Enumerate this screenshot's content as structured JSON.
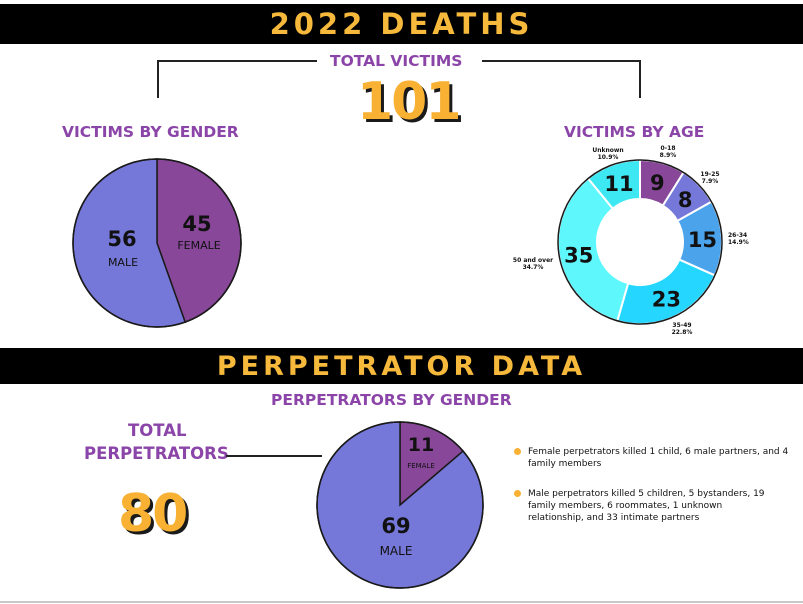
{
  "header": {
    "title": "2022 DEATHS"
  },
  "total_victims": {
    "label": "TOTAL VICTIMS",
    "value": "101"
  },
  "victims_by_gender": {
    "title": "VICTIMS BY GENDER",
    "slices": [
      {
        "name": "FEMALE",
        "value": 45,
        "color": "#884799"
      },
      {
        "name": "MALE",
        "value": 56,
        "color": "#7578d8"
      }
    ]
  },
  "victims_by_age": {
    "title": "VICTIMS BY AGE",
    "segments": [
      {
        "name": "0-18",
        "value": 9,
        "percent": "8.9%",
        "color": "#884799"
      },
      {
        "name": "19-25",
        "value": 8,
        "percent": "7.9%",
        "color": "#7578d8"
      },
      {
        "name": "26-34",
        "value": 15,
        "percent": "14.9%",
        "color": "#4ba3ec"
      },
      {
        "name": "35-49",
        "value": 23,
        "percent": "22.8%",
        "color": "#25d7ff"
      },
      {
        "name": "50 and over",
        "value": 35,
        "percent": "34.7%",
        "color": "#5ef7fb"
      },
      {
        "name": "Unknown",
        "value": 11,
        "percent": "10.9%",
        "color": "#3ee8f2"
      }
    ]
  },
  "perpetrator_section": {
    "title": "PERPETRATOR DATA"
  },
  "total_perpetrators": {
    "label_line1": "TOTAL",
    "label_line2": "PERPETRATORS",
    "value": "80"
  },
  "perpetrators_by_gender": {
    "title": "PERPETRATORS BY GENDER",
    "slices": [
      {
        "name": "FEMALE",
        "value": 11,
        "color": "#884799"
      },
      {
        "name": "MALE",
        "value": 69,
        "color": "#7578d8"
      }
    ]
  },
  "notes": [
    "Female perpetrators killed 1 child, 6 male partners, and 4 family members",
    "Male perpetrators killed 5 children, 5 bystanders, 19 family members, 6 roommates, 1 unknown relationship, and 33 intimate partners"
  ],
  "chart_data": [
    {
      "type": "pie",
      "title": "VICTIMS BY GENDER",
      "categories": [
        "MALE",
        "FEMALE"
      ],
      "values": [
        56,
        45
      ]
    },
    {
      "type": "pie",
      "title": "VICTIMS BY AGE",
      "categories": [
        "0-18",
        "19-25",
        "26-34",
        "35-49",
        "50 and over",
        "Unknown"
      ],
      "values": [
        9,
        8,
        15,
        23,
        35,
        11
      ],
      "percent_labels": [
        "8.9%",
        "7.9%",
        "14.9%",
        "22.8%",
        "34.7%",
        "10.9%"
      ]
    },
    {
      "type": "pie",
      "title": "PERPETRATORS BY GENDER",
      "categories": [
        "FEMALE",
        "MALE"
      ],
      "values": [
        11,
        69
      ]
    }
  ]
}
